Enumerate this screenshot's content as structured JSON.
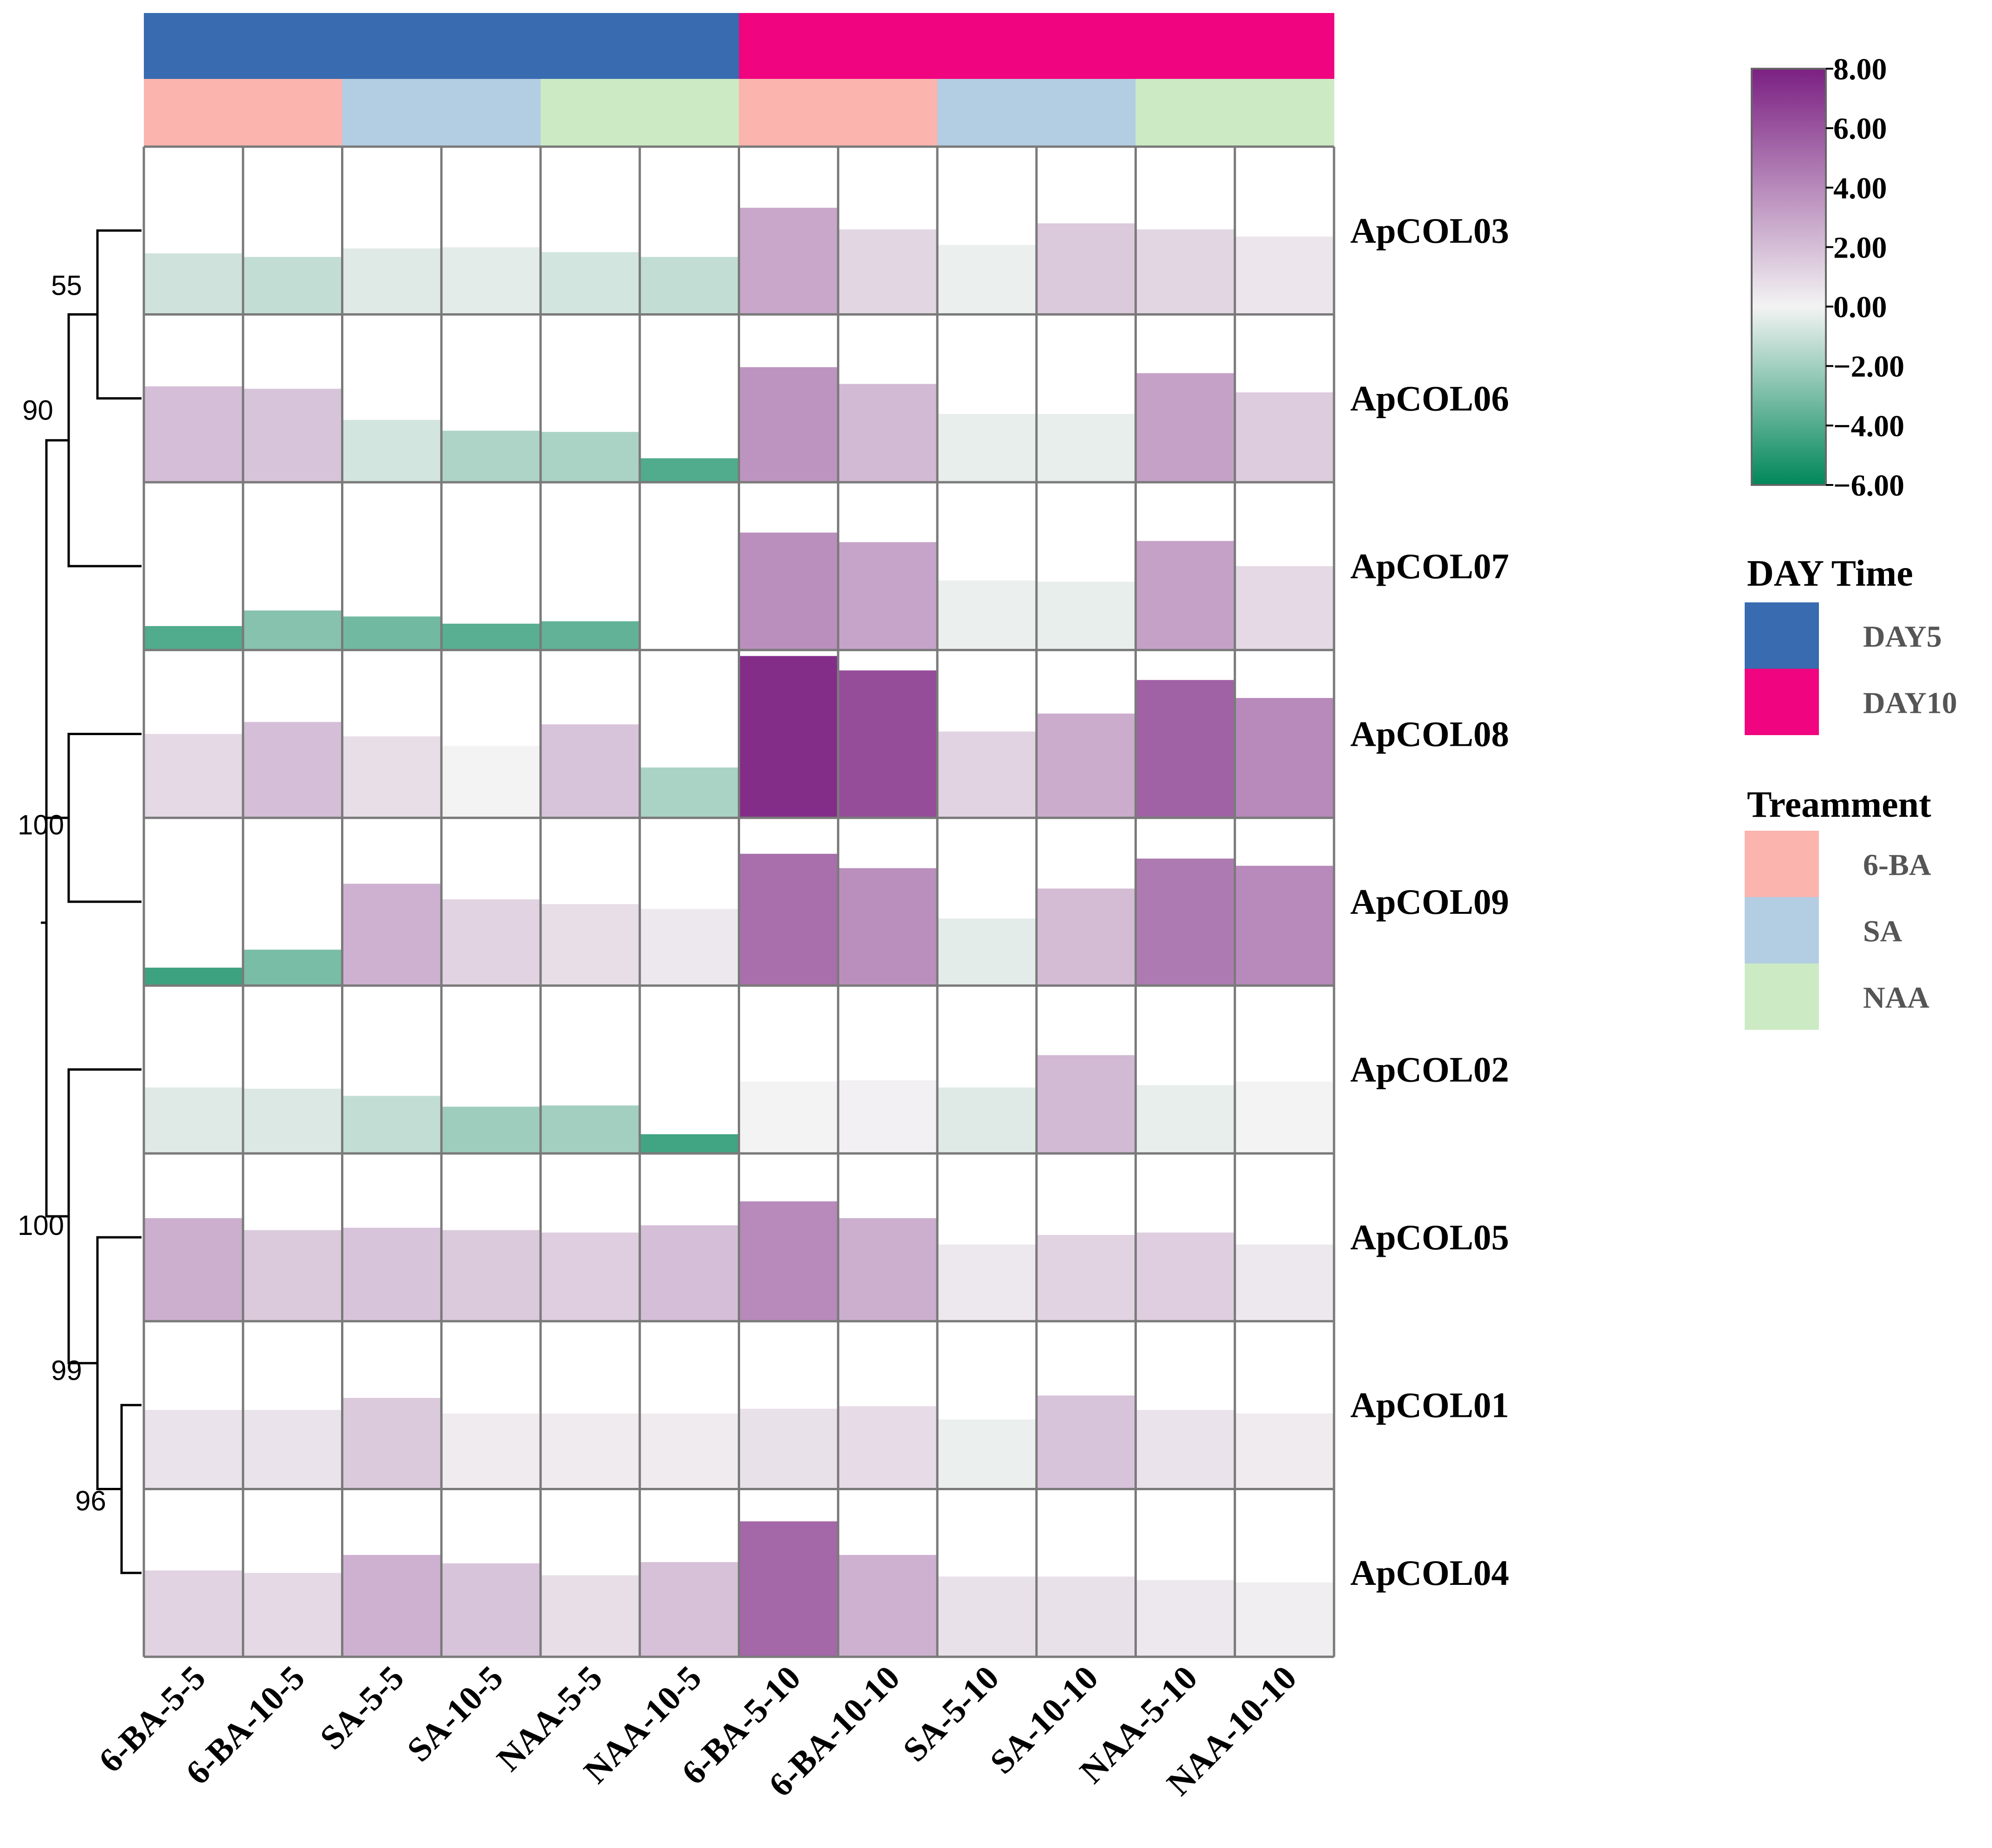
{
  "chart_data": {
    "type": "heatmap",
    "rows": [
      "ApCOL03",
      "ApCOL06",
      "ApCOL07",
      "ApCOL08",
      "ApCOL09",
      "ApCOL02",
      "ApCOL05",
      "ApCOL01",
      "ApCOL04"
    ],
    "columns": [
      "6-BA-5-5",
      "6-BA-10-5",
      "SA-5-5",
      "SA-10-5",
      "NAA-5-5",
      "NAA-10-5",
      "6-BA-5-10",
      "6-BA-10-10",
      "SA-5-10",
      "SA-10-10",
      "NAA-5-10",
      "NAA-10-10"
    ],
    "values": [
      [
        -0.9,
        -1.2,
        -0.5,
        -0.4,
        -0.8,
        -1.2,
        2.9,
        1.1,
        -0.2,
        1.6,
        1.1,
        0.5
      ],
      [
        2.0,
        1.8,
        -0.8,
        -1.7,
        -1.8,
        -4.0,
        3.6,
        2.2,
        -0.3,
        -0.3,
        3.1,
        1.5
      ],
      [
        -4.0,
        -2.7,
        -3.2,
        -3.8,
        -3.6,
        -6.0,
        3.8,
        3.0,
        -0.2,
        -0.3,
        3.1,
        1.0
      ],
      [
        1.0,
        2.0,
        0.8,
        0.0,
        1.8,
        -1.8,
        7.5,
        6.3,
        1.2,
        2.7,
        5.5,
        4.0
      ],
      [
        -4.5,
        -3.0,
        2.5,
        1.2,
        0.8,
        0.4,
        5.0,
        3.8,
        -0.4,
        2.1,
        4.6,
        4.0
      ],
      [
        -0.5,
        -0.6,
        -1.2,
        -2.1,
        -2.0,
        -4.4,
        0.0,
        0.1,
        -0.5,
        2.2,
        -0.3,
        0.0
      ],
      [
        2.6,
        1.6,
        1.8,
        1.6,
        1.4,
        2.0,
        4.0,
        2.6,
        0.4,
        1.2,
        1.4,
        0.4
      ],
      [
        0.6,
        0.6,
        1.6,
        0.3,
        0.3,
        0.3,
        0.7,
        0.9,
        -0.2,
        1.8,
        0.6,
        0.3
      ],
      [
        1.2,
        1.0,
        2.5,
        1.8,
        0.8,
        1.9,
        5.3,
        2.5,
        0.7,
        0.7,
        0.4,
        0.2
      ]
    ],
    "color_scale": {
      "min": -6.0,
      "max": 8.0,
      "stops": [
        {
          "value": -6.0,
          "color": "#00875a"
        },
        {
          "value": 0.0,
          "color": "#f3f3f3"
        },
        {
          "value": 8.0,
          "color": "#7b2082"
        }
      ],
      "tick_labels": [
        "8.00",
        "6.00",
        "4.00",
        "2.00",
        "0.00",
        "−2.00",
        "−4.00",
        "−6.00"
      ]
    },
    "column_annotations": [
      {
        "name": "DAY Time",
        "values": [
          "DAY5",
          "DAY5",
          "DAY5",
          "DAY5",
          "DAY5",
          "DAY5",
          "DAY10",
          "DAY10",
          "DAY10",
          "DAY10",
          "DAY10",
          "DAY10"
        ]
      },
      {
        "name": "Treamment",
        "values": [
          "6-BA",
          "6-BA",
          "SA",
          "SA",
          "NAA",
          "NAA",
          "6-BA",
          "6-BA",
          "SA",
          "SA",
          "NAA",
          "NAA"
        ]
      }
    ],
    "legends": [
      {
        "title": "DAY Time",
        "entries": [
          {
            "label": "DAY5",
            "color": "#386baf"
          },
          {
            "label": "DAY10",
            "color": "#f0047f"
          }
        ]
      },
      {
        "title": "Treamment",
        "entries": [
          {
            "label": "6-BA",
            "color": "#fbb4ae"
          },
          {
            "label": "SA",
            "color": "#b3cde3"
          },
          {
            "label": "NAA",
            "color": "#ccebc5"
          }
        ]
      }
    ],
    "dendrogram": {
      "merges": [
        {
          "a": "ApCOL03",
          "b": "ApCOL06",
          "support": "55"
        },
        {
          "a": "m0",
          "b": "ApCOL07",
          "support": "90"
        },
        {
          "a": "ApCOL08",
          "b": "ApCOL09",
          "support": "100"
        },
        {
          "a": "ApCOL01",
          "b": "ApCOL04",
          "support": "96"
        },
        {
          "a": "ApCOL05",
          "b": "m3",
          "support": "99"
        },
        {
          "a": "ApCOL02",
          "b": "m4",
          "support": "100"
        },
        {
          "a": "m1",
          "b": "m2",
          "support": ""
        },
        {
          "a": "m6",
          "b": "m5",
          "support": ""
        }
      ]
    }
  }
}
